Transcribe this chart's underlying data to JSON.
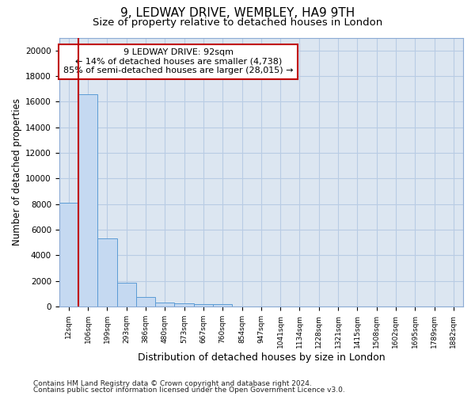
{
  "title_line1": "9, LEDWAY DRIVE, WEMBLEY, HA9 9TH",
  "title_line2": "Size of property relative to detached houses in London",
  "xlabel": "Distribution of detached houses by size in London",
  "ylabel": "Number of detached properties",
  "categories": [
    "12sqm",
    "106sqm",
    "199sqm",
    "293sqm",
    "386sqm",
    "480sqm",
    "573sqm",
    "667sqm",
    "760sqm",
    "854sqm",
    "947sqm",
    "1041sqm",
    "1134sqm",
    "1228sqm",
    "1321sqm",
    "1415sqm",
    "1508sqm",
    "1602sqm",
    "1695sqm",
    "1789sqm",
    "1882sqm"
  ],
  "bar_values": [
    8100,
    16600,
    5300,
    1850,
    730,
    310,
    240,
    210,
    170,
    0,
    0,
    0,
    0,
    0,
    0,
    0,
    0,
    0,
    0,
    0,
    0
  ],
  "bar_color": "#c5d9f1",
  "bar_edge_color": "#5b9bd5",
  "property_line_color": "#c00000",
  "property_line_x": 0.5,
  "annotation_text": "9 LEDWAY DRIVE: 92sqm\n← 14% of detached houses are smaller (4,738)\n85% of semi-detached houses are larger (28,015) →",
  "annotation_box_color": "#ffffff",
  "annotation_box_edge_color": "#c00000",
  "ylim": [
    0,
    21000
  ],
  "yticks": [
    0,
    2000,
    4000,
    6000,
    8000,
    10000,
    12000,
    14000,
    16000,
    18000,
    20000
  ],
  "background_color": "#ffffff",
  "plot_bg_color": "#dce6f1",
  "grid_color": "#b8cce4",
  "footer_line1": "Contains HM Land Registry data © Crown copyright and database right 2024.",
  "footer_line2": "Contains public sector information licensed under the Open Government Licence v3.0.",
  "title_fontsize": 11,
  "subtitle_fontsize": 9.5,
  "ylabel_fontsize": 8.5,
  "xlabel_fontsize": 9,
  "tick_fontsize": 6.5,
  "annotation_fontsize": 8,
  "footer_fontsize": 6.5
}
